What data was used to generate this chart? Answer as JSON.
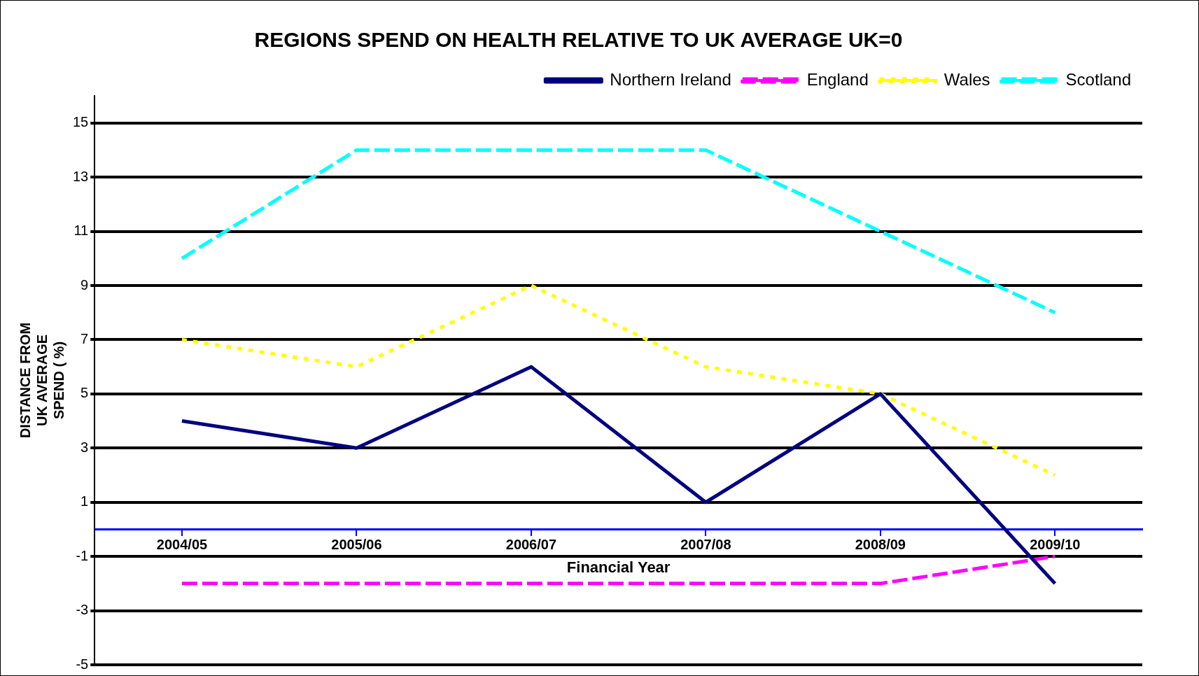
{
  "chart_data": {
    "type": "line",
    "title": "REGIONS SPEND ON HEALTH RELATIVE TO UK AVERAGE UK=0",
    "xlabel": "Financial Year",
    "ylabel": "DISTANCE FROM UK AVERAGE SPEND ( %)",
    "categories": [
      "2004/05",
      "2005/06",
      "2006/07",
      "2007/08",
      "2008/09",
      "2009/10"
    ],
    "series": [
      {
        "name": "Northern Ireland",
        "color": "#000080",
        "line_style": "solid",
        "values": [
          4,
          3,
          6,
          1,
          5,
          -2
        ]
      },
      {
        "name": "England",
        "color": "#ff00ff",
        "line_style": "dashed",
        "values": [
          -2,
          -2,
          -2,
          -2,
          -2,
          -1
        ]
      },
      {
        "name": "Wales",
        "color": "#ffff00",
        "line_style": "dotted",
        "values": [
          7,
          6,
          9,
          6,
          5,
          2
        ]
      },
      {
        "name": "Scotland",
        "color": "#00ffff",
        "line_style": "dashed",
        "values": [
          10,
          14,
          14,
          14,
          11,
          8
        ]
      }
    ],
    "ylim": [
      -5,
      16
    ],
    "yticks": [
      -5,
      -3,
      -1,
      1,
      3,
      5,
      7,
      9,
      11,
      13,
      15
    ],
    "grid": "y",
    "legend": "top right",
    "marker": "none"
  }
}
